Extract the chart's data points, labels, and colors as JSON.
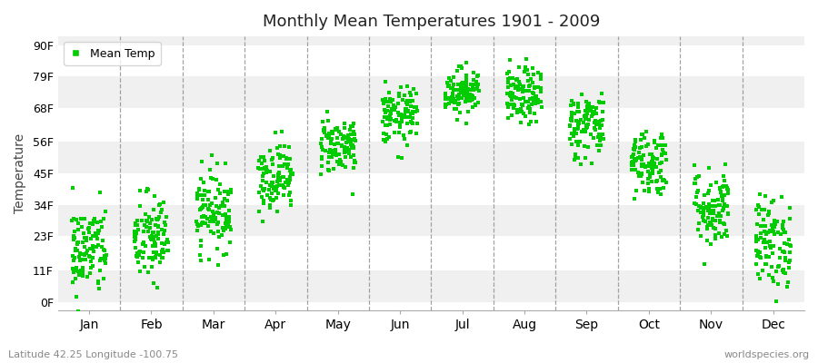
{
  "title": "Monthly Mean Temperatures 1901 - 2009",
  "ylabel": "Temperature",
  "xlabel_labels": [
    "Jan",
    "Feb",
    "Mar",
    "Apr",
    "May",
    "Jun",
    "Jul",
    "Aug",
    "Sep",
    "Oct",
    "Nov",
    "Dec"
  ],
  "ytick_labels": [
    "0F",
    "11F",
    "23F",
    "34F",
    "45F",
    "56F",
    "68F",
    "79F",
    "90F"
  ],
  "ytick_values": [
    0,
    11,
    23,
    34,
    45,
    56,
    68,
    79,
    90
  ],
  "ylim": [
    -3,
    93
  ],
  "dot_color": "#00cc00",
  "bg_color": "#ffffff",
  "plot_bg_color": "#ffffff",
  "band_color_even": "#f0f0f0",
  "band_color_odd": "#ffffff",
  "subtitle_left": "Latitude 42.25 Longitude -100.75",
  "subtitle_right": "worldspecies.org",
  "legend_label": "Mean Temp",
  "n_years": 109,
  "monthly_means": [
    18,
    22,
    32,
    44,
    55,
    65,
    74,
    72,
    62,
    49,
    33,
    21
  ],
  "monthly_stds": [
    8,
    8,
    7,
    6,
    5,
    5,
    4,
    5,
    6,
    6,
    7,
    8
  ],
  "seed": 42
}
